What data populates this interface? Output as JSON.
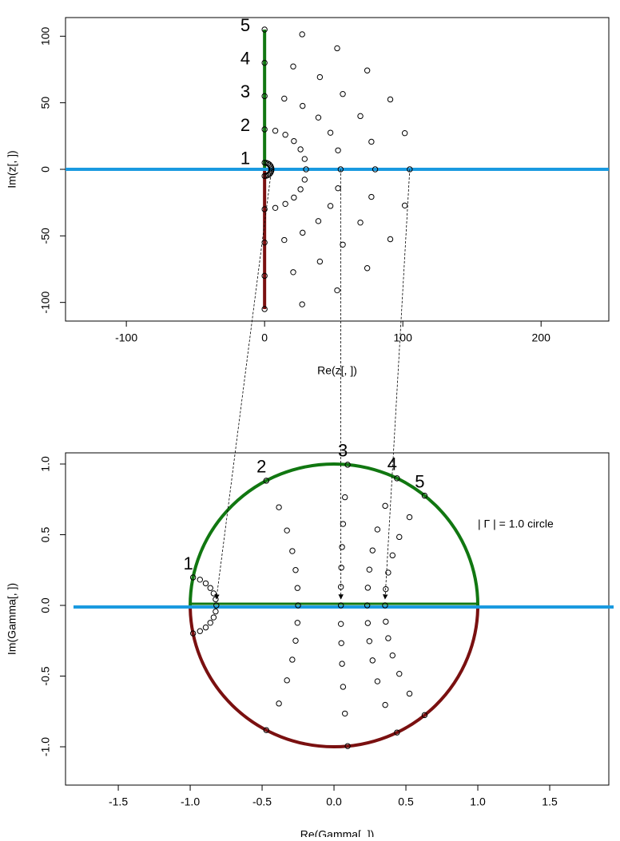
{
  "chart_data": [
    {
      "type": "scatter",
      "xlabel": "Re(z[, ])",
      "ylabel": "Im(z[, ])",
      "xlim": [
        -144,
        249
      ],
      "ylim": [
        -114,
        114
      ],
      "xticks": [
        -100,
        0,
        100,
        200
      ],
      "yticks": [
        -100,
        -50,
        0,
        50,
        100
      ],
      "series": [
        {
          "name": "1",
          "color": "#000000",
          "x": [
            0,
            1.29,
            2.5,
            3.54,
            4.33,
            4.83,
            5,
            4.83,
            4.33,
            3.54,
            2.5,
            1.29,
            0
          ],
          "y": [
            -5,
            -4.83,
            -4.33,
            -3.54,
            -2.5,
            -1.29,
            0,
            1.29,
            2.5,
            3.54,
            4.33,
            4.83,
            5
          ]
        },
        {
          "name": "2",
          "color": "#000000",
          "x": [
            0,
            7.76,
            15,
            21.21,
            25.98,
            28.98,
            30,
            28.98,
            25.98,
            21.21,
            15,
            7.76,
            0
          ],
          "y": [
            -30,
            -28.98,
            -25.98,
            -21.21,
            -15,
            -7.76,
            0,
            7.76,
            15,
            21.21,
            25.98,
            28.98,
            30
          ]
        },
        {
          "name": "3",
          "color": "#000000",
          "x": [
            0,
            14.24,
            27.5,
            38.89,
            47.63,
            53.13,
            55,
            53.13,
            47.63,
            38.89,
            27.5,
            14.24,
            0
          ],
          "y": [
            -55,
            -53.13,
            -47.63,
            -38.89,
            -27.5,
            -14.24,
            0,
            14.24,
            27.5,
            38.89,
            47.63,
            53.13,
            55
          ]
        },
        {
          "name": "4",
          "color": "#000000",
          "x": [
            0,
            20.71,
            40,
            56.57,
            69.28,
            77.27,
            80,
            77.27,
            69.28,
            56.57,
            40,
            20.71,
            0
          ],
          "y": [
            -80,
            -77.27,
            -69.28,
            -56.57,
            -40,
            -20.71,
            0,
            20.71,
            40,
            56.57,
            69.28,
            77.27,
            80
          ]
        },
        {
          "name": "5",
          "color": "#000000",
          "x": [
            0,
            27.18,
            52.5,
            74.25,
            90.93,
            101.42,
            105,
            101.42,
            90.93,
            74.25,
            52.5,
            27.18,
            0
          ],
          "y": [
            -105,
            -101.42,
            -90.93,
            -74.25,
            -52.5,
            -27.18,
            0,
            27.18,
            52.5,
            74.25,
            90.93,
            101.42,
            105
          ]
        }
      ]
    },
    {
      "type": "scatter",
      "xlabel": "Re(Gamma[, ])",
      "ylabel": "Im(Gamma[, ])",
      "annotation": "| Γ | = 1.0 circle",
      "xlim": [
        -1.867,
        1.911
      ],
      "ylim": [
        -1.271,
        1.079
      ],
      "xticks": [
        -1.5,
        {
          "value": -1.0,
          "label": "-1.0"
        },
        -0.5,
        {
          "value": 0.0,
          "label": "0.0"
        },
        0.5,
        {
          "value": 1.0,
          "label": "1.0"
        },
        1.5
      ],
      "yticks": [
        {
          "value": -1.0,
          "label": "-1.0"
        },
        -0.5,
        {
          "value": 0.0,
          "label": "0.0"
        },
        0.5,
        {
          "value": 1.0,
          "label": "1.0"
        }
      ],
      "series": [
        {
          "name": "1",
          "color": "#000000",
          "x": [
            -0.98,
            -0.932,
            -0.892,
            -0.86,
            -0.837,
            -0.823,
            -0.818,
            -0.823,
            -0.837,
            -0.86,
            -0.892,
            -0.932,
            -0.98
          ],
          "y": [
            -0.198,
            -0.182,
            -0.156,
            -0.123,
            -0.085,
            -0.043,
            0,
            0.043,
            0.085,
            0.123,
            0.156,
            0.182,
            0.198
          ]
        },
        {
          "name": "2",
          "color": "#000000",
          "x": [
            -0.471,
            -0.383,
            -0.327,
            -0.29,
            -0.267,
            -0.254,
            -0.25,
            -0.254,
            -0.267,
            -0.29,
            -0.327,
            -0.383,
            -0.471
          ],
          "y": [
            -0.882,
            -0.694,
            -0.53,
            -0.384,
            -0.25,
            -0.123,
            0,
            0.123,
            0.25,
            0.384,
            0.53,
            0.694,
            0.882
          ]
        },
        {
          "name": "3",
          "color": "#000000",
          "x": [
            0.095,
            0.076,
            0.063,
            0.056,
            0.051,
            0.048,
            0.048,
            0.048,
            0.051,
            0.056,
            0.063,
            0.076,
            0.095
          ],
          "y": [
            -0.995,
            -0.765,
            -0.576,
            -0.413,
            -0.267,
            -0.131,
            0,
            0.131,
            0.267,
            0.413,
            0.576,
            0.765,
            0.995
          ]
        },
        {
          "name": "4",
          "color": "#000000",
          "x": [
            0.438,
            0.356,
            0.302,
            0.268,
            0.246,
            0.235,
            0.231,
            0.235,
            0.246,
            0.268,
            0.302,
            0.356,
            0.438
          ],
          "y": [
            -0.899,
            -0.704,
            -0.537,
            -0.389,
            -0.253,
            -0.125,
            0,
            0.125,
            0.253,
            0.389,
            0.537,
            0.704,
            0.899
          ]
        },
        {
          "name": "5",
          "color": "#000000",
          "x": [
            0.63,
            0.525,
            0.454,
            0.407,
            0.377,
            0.36,
            0.355,
            0.36,
            0.377,
            0.407,
            0.454,
            0.525,
            0.63
          ],
          "y": [
            -0.776,
            -0.624,
            -0.484,
            -0.354,
            -0.232,
            -0.115,
            0,
            0.115,
            0.232,
            0.354,
            0.484,
            0.624,
            0.776
          ]
        }
      ]
    }
  ]
}
